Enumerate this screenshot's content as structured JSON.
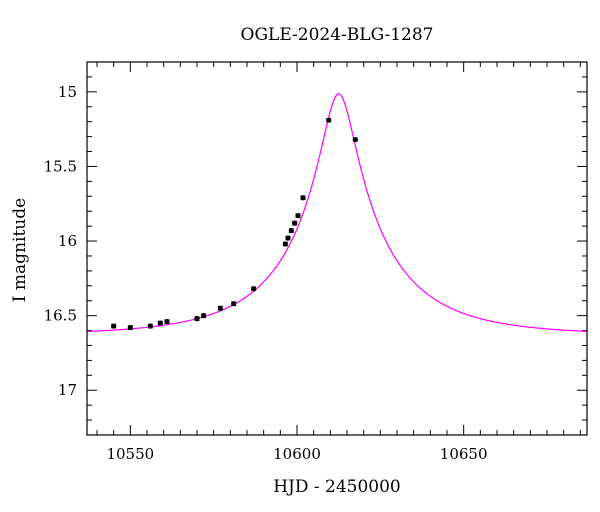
{
  "chart_data": {
    "type": "scatter",
    "title": "OGLE-2024-BLG-1287",
    "xlabel": "HJD - 2450000",
    "ylabel": "I magnitude",
    "xlim": [
      10537,
      10687
    ],
    "ylim": [
      17.3,
      14.8
    ],
    "y_inverted": true,
    "grid": false,
    "x_ticks": {
      "major": [
        10550,
        10600,
        10650
      ],
      "labels": [
        "10550",
        "10600",
        "10650"
      ],
      "minor_step": 5
    },
    "y_ticks": {
      "major": [
        15,
        15.5,
        16,
        16.5,
        17
      ],
      "labels": [
        "15",
        "15.5",
        "16",
        "16.5",
        "17"
      ],
      "minor_step": 0.1
    },
    "model": {
      "name": "",
      "color": "#ff00ff",
      "kind": "point-lens",
      "t0": 10612.5,
      "u0": 0.15,
      "tE": 32,
      "base_mag": 16.63,
      "fs": 0.6
    },
    "series": [
      {
        "name": "",
        "color": "#000000",
        "marker": "circle",
        "x": [
          10545,
          10550,
          10556,
          10559,
          10561,
          10570,
          10572,
          10577,
          10581,
          10587,
          10596.5,
          10597.3,
          10598.3,
          10599.3,
          10600.3,
          10601.8,
          10609.5,
          10617.5
        ],
        "y": [
          16.57,
          16.58,
          16.57,
          16.55,
          16.54,
          16.52,
          16.5,
          16.45,
          16.42,
          16.32,
          16.02,
          15.98,
          15.93,
          15.88,
          15.83,
          15.71,
          15.19,
          15.32
        ],
        "yerr": [
          0.012,
          0.012,
          0.012,
          0.012,
          0.012,
          0.012,
          0.012,
          0.012,
          0.012,
          0.012,
          0.012,
          0.012,
          0.012,
          0.012,
          0.012,
          0.012,
          0.01,
          0.01
        ]
      }
    ]
  }
}
